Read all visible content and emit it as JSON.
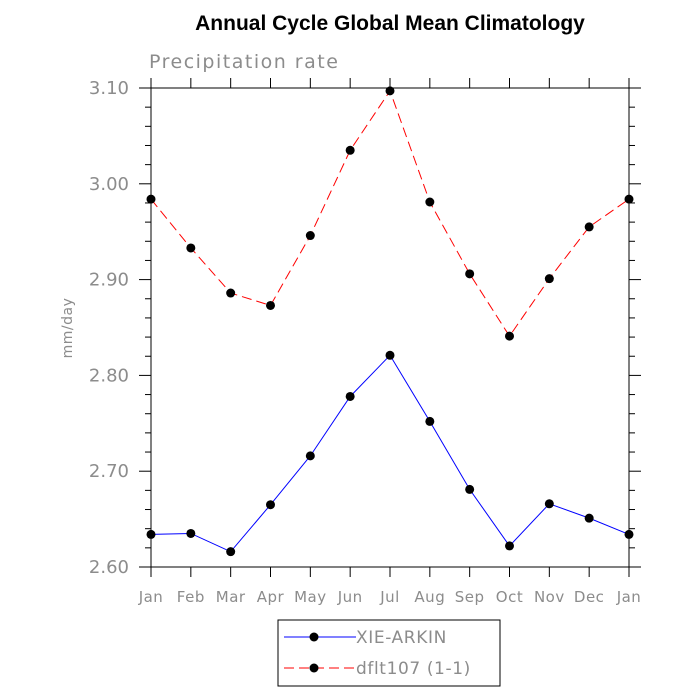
{
  "chart_data": {
    "type": "line",
    "title": "Annual Cycle Global Mean Climatology",
    "subtitle": "Precipitation rate",
    "ylabel": "mm/day",
    "xlabel": "",
    "categories": [
      "Jan",
      "Feb",
      "Mar",
      "Apr",
      "May",
      "Jun",
      "Jul",
      "Aug",
      "Sep",
      "Oct",
      "Nov",
      "Dec",
      "Jan"
    ],
    "ylim": [
      2.6,
      3.1
    ],
    "yticks": [
      "2.60",
      "2.70",
      "2.80",
      "2.90",
      "3.00",
      "3.10"
    ],
    "grid": false,
    "legend_position": "bottom-center",
    "series": [
      {
        "name": "XIE-ARKIN",
        "color": "#0000ff",
        "line_style": "solid",
        "marker": "filled-circle",
        "values": [
          2.634,
          2.635,
          2.616,
          2.665,
          2.716,
          2.778,
          2.821,
          2.752,
          2.681,
          2.622,
          2.666,
          2.651,
          2.634
        ]
      },
      {
        "name": "dflt107 (1-1)",
        "color": "#ff0000",
        "line_style": "dashed",
        "marker": "filled-circle",
        "values": [
          2.984,
          2.933,
          2.886,
          2.873,
          2.946,
          3.035,
          3.097,
          2.981,
          2.906,
          2.841,
          2.901,
          2.955,
          2.984
        ]
      }
    ]
  }
}
